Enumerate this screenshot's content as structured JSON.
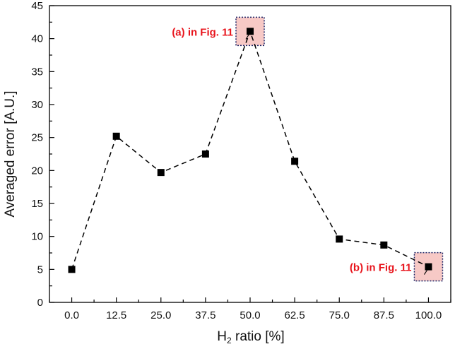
{
  "chart_data": {
    "type": "line",
    "xlabel_main": "H",
    "xlabel_sub": "2",
    "xlabel_rest": " ratio [%]",
    "ylabel": "Averaged error [A.U.]",
    "x": [
      0.0,
      12.5,
      25.0,
      37.5,
      50.0,
      62.5,
      75.0,
      87.5,
      100.0
    ],
    "x_tick_labels": [
      "0.0",
      "12.5",
      "25.0",
      "37.5",
      "50.0",
      "62.5",
      "75.0",
      "87.5",
      "100.0"
    ],
    "y": [
      5.0,
      25.2,
      19.7,
      22.5,
      41.1,
      21.4,
      9.6,
      8.7,
      5.4
    ],
    "xlim": [
      -6.25,
      106.25
    ],
    "ylim": [
      0,
      45
    ],
    "y_ticks": [
      0,
      5,
      10,
      15,
      20,
      25,
      30,
      35,
      40,
      45
    ],
    "grid": false,
    "line_style": "dashed",
    "marker": "square",
    "annotations": [
      {
        "text": "(a) in Fig. 11",
        "x": 50.0,
        "y": 41.1,
        "label_side": "left"
      },
      {
        "text": "(b) in Fig. 11",
        "x": 100.0,
        "y": 5.4,
        "label_side": "left"
      }
    ],
    "colors": {
      "series": "#000000",
      "annotation_text": "#e8141c",
      "highlight_fill": "#f7c9c6",
      "highlight_border": "#1c2566"
    }
  }
}
